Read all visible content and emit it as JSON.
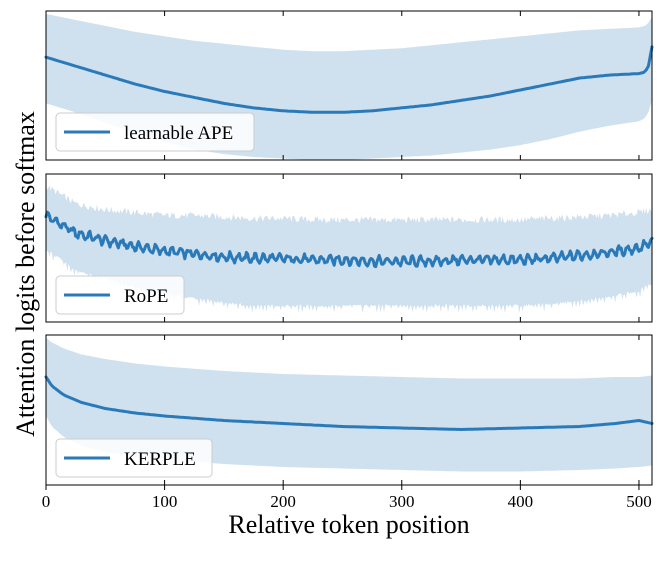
{
  "chart_data": {
    "type": "line",
    "xlabel": "Relative token position",
    "ylabel": "Attention logits before softmax",
    "xlim": [
      0,
      511
    ],
    "xticks": [
      0,
      100,
      200,
      300,
      400,
      500
    ],
    "xtick_labels": [
      "0",
      "100",
      "200",
      "300",
      "400",
      "500"
    ],
    "band_color": "#cfe0ef",
    "line_color": "#2a7ab9",
    "panels": [
      {
        "name": "learnable-ape",
        "legend_label": "learnable APE",
        "legend_location": "lower-left",
        "ylim": [
          0,
          1
        ],
        "series": {
          "name": "learnable APE",
          "x": [
            0,
            25,
            50,
            75,
            100,
            125,
            150,
            175,
            200,
            225,
            250,
            275,
            300,
            325,
            350,
            375,
            400,
            425,
            450,
            475,
            500,
            505,
            508,
            511
          ],
          "mean": [
            0.69,
            0.63,
            0.57,
            0.51,
            0.46,
            0.42,
            0.38,
            0.35,
            0.33,
            0.32,
            0.32,
            0.33,
            0.35,
            0.37,
            0.4,
            0.43,
            0.47,
            0.51,
            0.55,
            0.57,
            0.58,
            0.59,
            0.63,
            0.76
          ],
          "upper": [
            0.98,
            0.94,
            0.9,
            0.86,
            0.83,
            0.8,
            0.78,
            0.76,
            0.74,
            0.73,
            0.73,
            0.74,
            0.75,
            0.77,
            0.79,
            0.81,
            0.83,
            0.85,
            0.87,
            0.88,
            0.89,
            0.9,
            0.92,
            0.96
          ],
          "lower": [
            0.38,
            0.32,
            0.25,
            0.18,
            0.12,
            0.07,
            0.04,
            0.02,
            0.01,
            0.0,
            0.0,
            0.01,
            0.02,
            0.03,
            0.05,
            0.07,
            0.1,
            0.14,
            0.19,
            0.23,
            0.26,
            0.28,
            0.32,
            0.4
          ]
        }
      },
      {
        "name": "rope",
        "legend_label": "RoPE",
        "legend_location": "lower-left",
        "ylim": [
          0,
          1
        ],
        "series": {
          "name": "RoPE",
          "x": [
            0,
            25,
            50,
            75,
            100,
            125,
            150,
            175,
            200,
            225,
            250,
            275,
            300,
            325,
            350,
            375,
            400,
            425,
            450,
            475,
            500,
            511
          ],
          "mean": [
            0.72,
            0.6,
            0.55,
            0.51,
            0.48,
            0.46,
            0.44,
            0.43,
            0.43,
            0.42,
            0.42,
            0.41,
            0.41,
            0.41,
            0.42,
            0.42,
            0.42,
            0.43,
            0.45,
            0.47,
            0.5,
            0.54
          ],
          "upper": [
            0.92,
            0.8,
            0.76,
            0.74,
            0.72,
            0.72,
            0.71,
            0.7,
            0.7,
            0.69,
            0.69,
            0.69,
            0.69,
            0.69,
            0.69,
            0.69,
            0.69,
            0.7,
            0.71,
            0.72,
            0.74,
            0.76
          ],
          "lower": [
            0.5,
            0.36,
            0.3,
            0.24,
            0.2,
            0.17,
            0.14,
            0.12,
            0.12,
            0.12,
            0.12,
            0.12,
            0.12,
            0.12,
            0.12,
            0.12,
            0.12,
            0.13,
            0.15,
            0.18,
            0.22,
            0.28
          ],
          "oscillation_amplitude": 0.025,
          "band_noise_amplitude": 0.06
        }
      },
      {
        "name": "kerple",
        "legend_label": "KERPLE",
        "legend_location": "lower-left",
        "ylim": [
          0,
          1
        ],
        "series": {
          "name": "KERPLE",
          "x": [
            0,
            5,
            15,
            30,
            50,
            75,
            100,
            150,
            200,
            250,
            300,
            350,
            400,
            450,
            480,
            500,
            511
          ],
          "mean": [
            0.72,
            0.66,
            0.6,
            0.55,
            0.51,
            0.48,
            0.46,
            0.43,
            0.41,
            0.39,
            0.38,
            0.37,
            0.38,
            0.39,
            0.41,
            0.43,
            0.41
          ],
          "upper": [
            0.98,
            0.95,
            0.91,
            0.87,
            0.84,
            0.81,
            0.79,
            0.76,
            0.74,
            0.73,
            0.72,
            0.71,
            0.71,
            0.71,
            0.72,
            0.72,
            0.73
          ],
          "lower": [
            0.46,
            0.39,
            0.32,
            0.26,
            0.22,
            0.19,
            0.17,
            0.14,
            0.12,
            0.11,
            0.1,
            0.09,
            0.09,
            0.1,
            0.11,
            0.12,
            0.13
          ]
        }
      }
    ]
  }
}
